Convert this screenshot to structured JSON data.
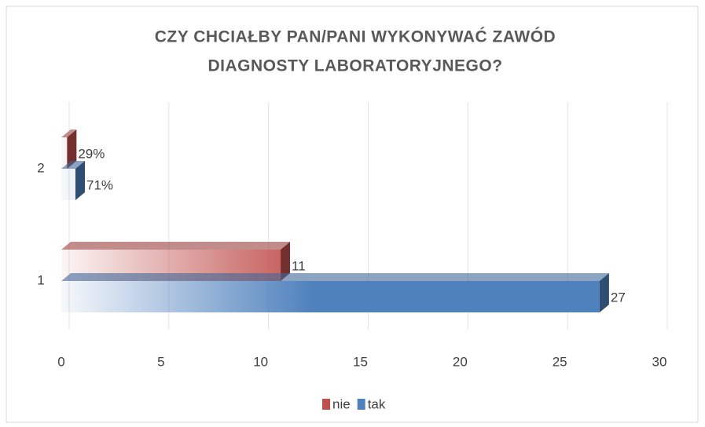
{
  "chart_data": {
    "type": "bar3d",
    "orientation": "horizontal",
    "title": "CZY CHCIAŁBY PAN/PANI WYKONYWAĆ ZAWÓD DIAGNOSTY LABORATORYJNEGO?",
    "categories": [
      "1",
      "2"
    ],
    "series": [
      {
        "name": "nie",
        "color": "#c0504d",
        "values": [
          11,
          0.29
        ],
        "value_labels": [
          "11",
          "29%"
        ]
      },
      {
        "name": "tak",
        "color": "#4f81bd",
        "values": [
          27,
          0.71
        ],
        "value_labels": [
          "27",
          "71%"
        ]
      }
    ],
    "xlim": [
      0,
      30
    ],
    "xticks": [
      0,
      5,
      10,
      15,
      20,
      25,
      30
    ],
    "grid": true,
    "legend": "bottom"
  }
}
